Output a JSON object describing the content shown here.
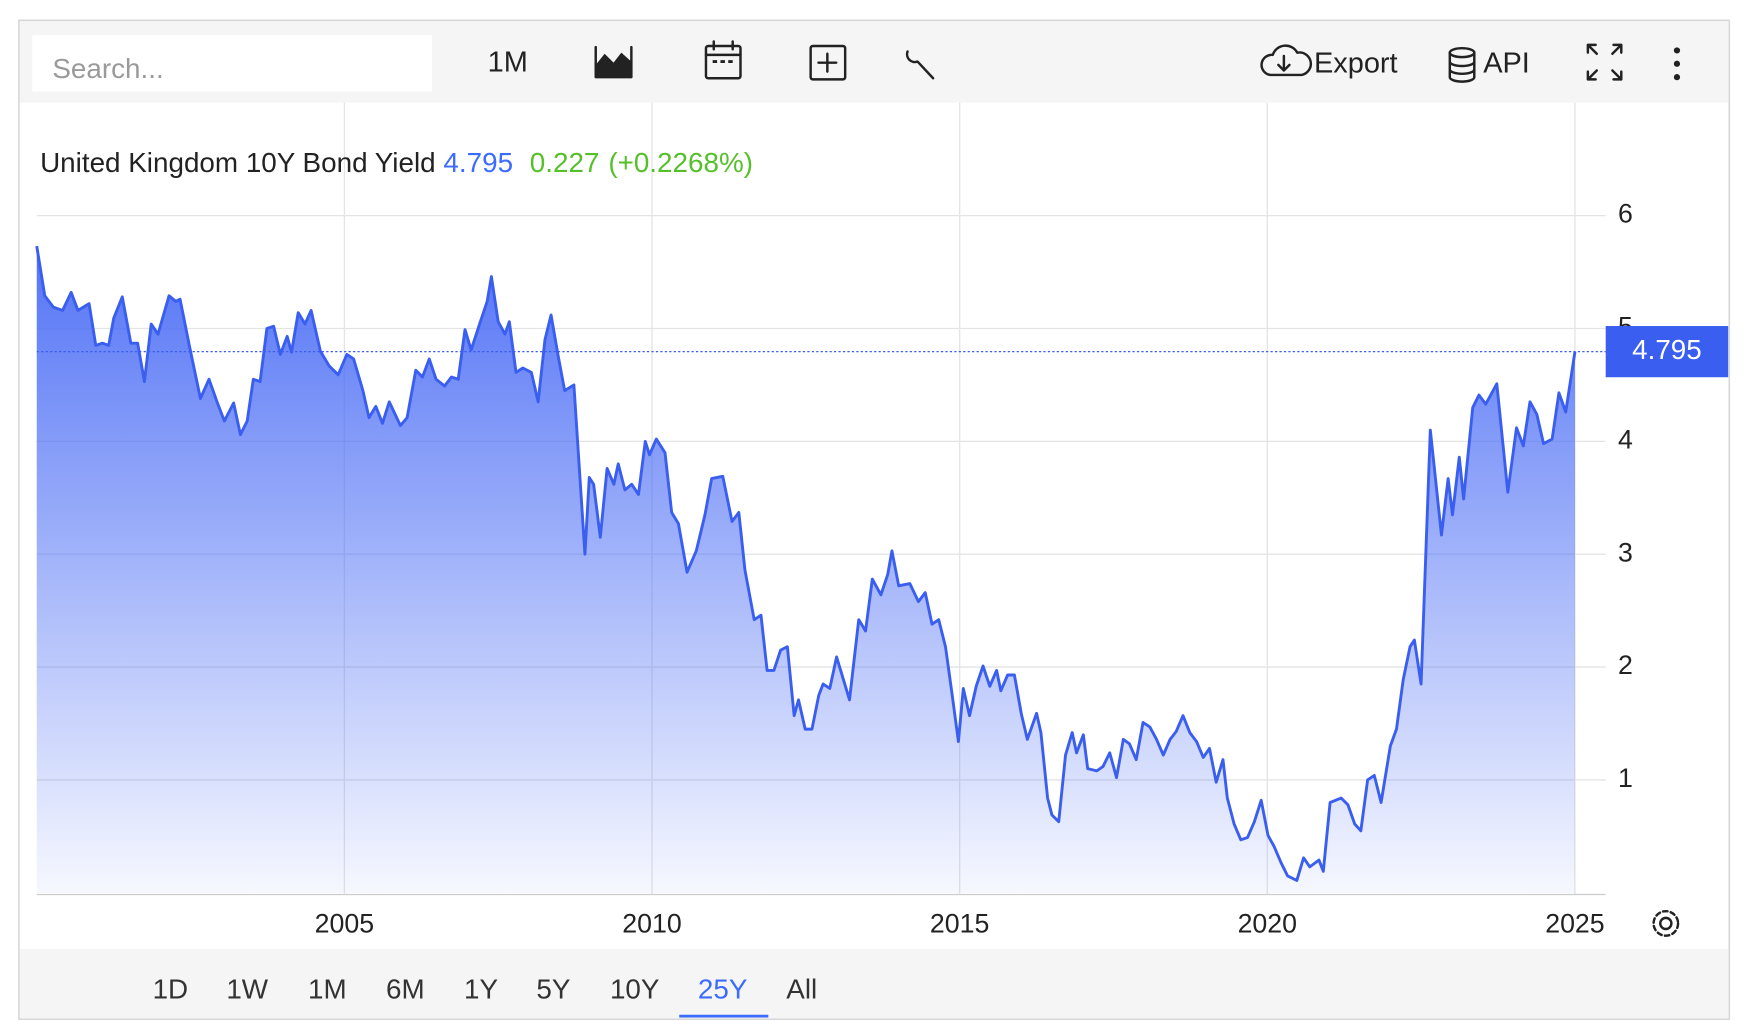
{
  "toolbar": {
    "search_placeholder": "Search...",
    "interval": "1M",
    "export": "Export",
    "api": "API"
  },
  "ranges": [
    "1D",
    "1W",
    "1M",
    "6M",
    "1Y",
    "5Y",
    "10Y",
    "25Y",
    "All"
  ],
  "active_range": 7,
  "chart_data": {
    "type": "area",
    "title": "United Kingdom 10Y Bond Yield",
    "last_value": 4.795,
    "change": 0.227,
    "change_pct": "(+0.2268%)",
    "color": "#3a5ef0",
    "grid": true,
    "xlim": [
      2000,
      2025.5
    ],
    "xticks": [
      2005,
      2010,
      2015,
      2020,
      2025
    ],
    "ylim": [
      0,
      7
    ],
    "yticks": [
      1,
      2,
      3,
      4,
      5,
      6
    ],
    "x": [
      2000.0,
      2000.13,
      2000.27,
      2000.42,
      2000.56,
      2000.67,
      2000.85,
      2000.96,
      2001.07,
      2001.17,
      2001.25,
      2001.39,
      2001.53,
      2001.64,
      2001.75,
      2001.86,
      2001.97,
      2002.15,
      2002.26,
      2002.33,
      2002.48,
      2002.66,
      2002.8,
      2002.93,
      2003.05,
      2003.2,
      2003.31,
      2003.42,
      2003.52,
      2003.63,
      2003.74,
      2003.85,
      2003.96,
      2004.07,
      2004.14,
      2004.25,
      2004.36,
      2004.46,
      2004.61,
      2004.75,
      2004.9,
      2005.04,
      2005.15,
      2005.3,
      2005.4,
      2005.51,
      2005.62,
      2005.73,
      2005.91,
      2006.02,
      2006.16,
      2006.27,
      2006.38,
      2006.49,
      2006.63,
      2006.74,
      2006.85,
      2006.96,
      2007.06,
      2007.21,
      2007.32,
      2007.39,
      2007.5,
      2007.61,
      2007.68,
      2007.79,
      2007.9,
      2008.04,
      2008.15,
      2008.26,
      2008.36,
      2008.47,
      2008.58,
      2008.73,
      2008.91,
      2008.98,
      2009.05,
      2009.16,
      2009.27,
      2009.38,
      2009.45,
      2009.56,
      2009.67,
      2009.78,
      2009.89,
      2009.96,
      2010.07,
      2010.21,
      2010.32,
      2010.43,
      2010.57,
      2010.72,
      2010.86,
      2010.97,
      2011.15,
      2011.3,
      2011.41,
      2011.51,
      2011.66,
      2011.77,
      2011.87,
      2011.98,
      2012.09,
      2012.2,
      2012.31,
      2012.38,
      2012.49,
      2012.6,
      2012.71,
      2012.78,
      2012.89,
      2013.0,
      2013.11,
      2013.21,
      2013.36,
      2013.47,
      2013.58,
      2013.72,
      2013.83,
      2013.9,
      2014.01,
      2014.19,
      2014.33,
      2014.44,
      2014.55,
      2014.66,
      2014.77,
      2014.87,
      2014.98,
      2015.06,
      2015.16,
      2015.27,
      2015.38,
      2015.49,
      2015.6,
      2015.67,
      2015.78,
      2015.89,
      2016.0,
      2016.1,
      2016.25,
      2016.32,
      2016.43,
      2016.5,
      2016.61,
      2016.72,
      2016.83,
      2016.9,
      2017.01,
      2017.08,
      2017.23,
      2017.33,
      2017.44,
      2017.55,
      2017.66,
      2017.76,
      2017.87,
      2017.98,
      2018.09,
      2018.2,
      2018.31,
      2018.42,
      2018.52,
      2018.63,
      2018.74,
      2018.85,
      2018.96,
      2019.06,
      2019.17,
      2019.28,
      2019.35,
      2019.46,
      2019.57,
      2019.68,
      2019.79,
      2019.9,
      2020.01,
      2020.11,
      2020.22,
      2020.33,
      2020.48,
      2020.59,
      2020.69,
      2020.84,
      2020.91,
      2021.02,
      2021.2,
      2021.31,
      2021.42,
      2021.52,
      2021.63,
      2021.74,
      2021.85,
      2022.0,
      2022.1,
      2022.21,
      2022.32,
      2022.39,
      2022.5,
      2022.65,
      2022.83,
      2022.94,
      2023.01,
      2023.12,
      2023.19,
      2023.34,
      2023.44,
      2023.55,
      2023.73,
      2023.91,
      2024.05,
      2024.16,
      2024.27,
      2024.38,
      2024.49,
      2024.63,
      2024.74,
      2024.85,
      2025.0
    ],
    "values": [
      5.73,
      5.29,
      5.19,
      5.16,
      5.32,
      5.16,
      5.22,
      4.85,
      4.87,
      4.85,
      5.09,
      5.28,
      4.87,
      4.87,
      4.53,
      5.04,
      4.95,
      5.29,
      5.24,
      5.26,
      4.85,
      4.38,
      4.55,
      4.35,
      4.18,
      4.34,
      4.06,
      4.18,
      4.55,
      4.53,
      5.0,
      5.02,
      4.77,
      4.93,
      4.79,
      5.14,
      5.04,
      5.16,
      4.8,
      4.67,
      4.59,
      4.77,
      4.73,
      4.45,
      4.21,
      4.31,
      4.16,
      4.35,
      4.14,
      4.21,
      4.63,
      4.57,
      4.73,
      4.55,
      4.49,
      4.57,
      4.55,
      4.99,
      4.81,
      5.06,
      5.24,
      5.46,
      5.06,
      4.95,
      5.06,
      4.61,
      4.65,
      4.61,
      4.35,
      4.9,
      5.12,
      4.77,
      4.45,
      4.5,
      3.0,
      3.68,
      3.62,
      3.15,
      3.76,
      3.62,
      3.8,
      3.57,
      3.62,
      3.53,
      4.0,
      3.88,
      4.02,
      3.9,
      3.37,
      3.27,
      2.84,
      3.03,
      3.35,
      3.67,
      3.69,
      3.29,
      3.37,
      2.86,
      2.42,
      2.46,
      1.97,
      1.97,
      2.15,
      2.18,
      1.57,
      1.71,
      1.45,
      1.45,
      1.75,
      1.85,
      1.81,
      2.09,
      1.89,
      1.71,
      2.42,
      2.32,
      2.78,
      2.64,
      2.82,
      3.03,
      2.72,
      2.74,
      2.58,
      2.66,
      2.38,
      2.42,
      2.18,
      1.79,
      1.34,
      1.81,
      1.57,
      1.83,
      2.01,
      1.83,
      1.97,
      1.79,
      1.93,
      1.93,
      1.59,
      1.36,
      1.59,
      1.42,
      0.84,
      0.69,
      0.63,
      1.22,
      1.42,
      1.24,
      1.4,
      1.1,
      1.08,
      1.12,
      1.24,
      1.02,
      1.36,
      1.32,
      1.18,
      1.51,
      1.47,
      1.36,
      1.22,
      1.36,
      1.43,
      1.57,
      1.42,
      1.34,
      1.2,
      1.28,
      0.98,
      1.18,
      0.84,
      0.61,
      0.47,
      0.49,
      0.63,
      0.82,
      0.51,
      0.41,
      0.27,
      0.15,
      0.11,
      0.31,
      0.23,
      0.29,
      0.19,
      0.8,
      0.84,
      0.78,
      0.61,
      0.55,
      1.0,
      1.04,
      0.8,
      1.3,
      1.45,
      1.89,
      2.18,
      2.24,
      1.85,
      4.1,
      3.17,
      3.67,
      3.35,
      3.86,
      3.49,
      4.3,
      4.41,
      4.33,
      4.51,
      3.55,
      4.12,
      3.96,
      4.35,
      4.24,
      3.98,
      4.02,
      4.43,
      4.26,
      4.795
    ]
  }
}
